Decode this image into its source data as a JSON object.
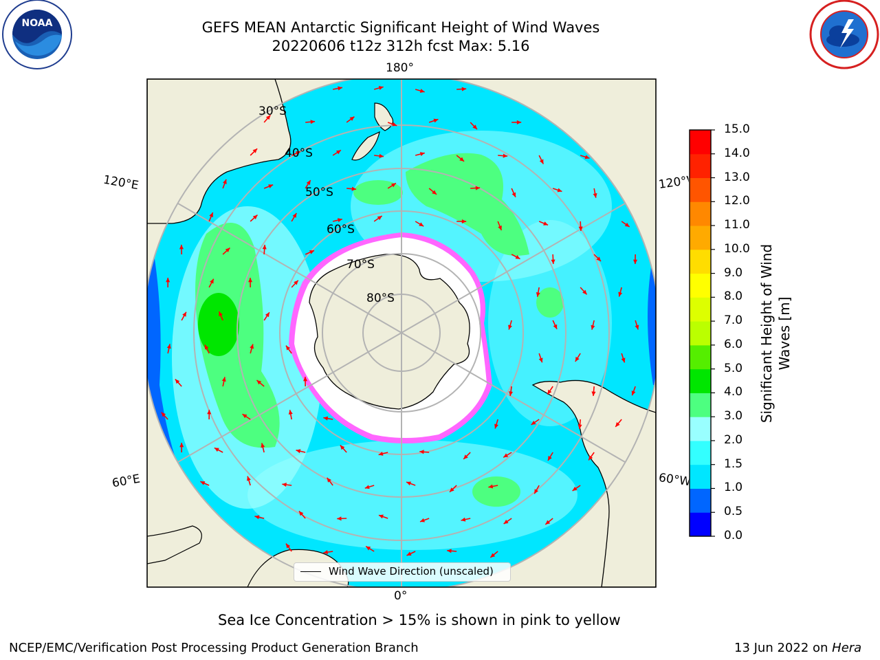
{
  "title": {
    "line1": "GEFS MEAN Antarctic Significant Height of Wind Waves",
    "line2": "20220606 t12z 312h fcst   Max: 5.16"
  },
  "map": {
    "projection": "south-polar-stereographic",
    "longitude_labels": {
      "top": "180°",
      "bottom": "0°",
      "upper_left": "120°E",
      "upper_right": "120°W",
      "lower_left": "60°E",
      "lower_right": "60°W"
    },
    "latitude_labels": [
      "30°S",
      "40°S",
      "50°S",
      "60°S",
      "70°S",
      "80°S"
    ],
    "colors": {
      "land": "#efeedb",
      "sea_ice": "#ffffff",
      "ice_edge": "#ff33ff",
      "arrows": "#ff0000",
      "grid": "#b3b3b3"
    }
  },
  "legend": {
    "label": "Wind Wave Direction (unscaled)"
  },
  "colorbar": {
    "title_line1": "Significant Height of Wind",
    "title_line2": "Waves [m]",
    "ticks": [
      "0.0",
      "0.5",
      "1.0",
      "1.5",
      "2.0",
      "3.0",
      "4.0",
      "5.0",
      "6.0",
      "7.0",
      "8.0",
      "9.0",
      "10.0",
      "11.0",
      "12.0",
      "13.0",
      "14.0",
      "15.0"
    ],
    "colors": [
      "#0000ff",
      "#0066ff",
      "#00e6ff",
      "#33ffff",
      "#99ffff",
      "#4dff80",
      "#00e600",
      "#55ee00",
      "#bbff00",
      "#ddff00",
      "#ffff00",
      "#ffdd00",
      "#ffaa00",
      "#ff8800",
      "#ff5500",
      "#ff2200",
      "#ff0000"
    ]
  },
  "caption": "Sea Ice Concentration > 15% is shown in pink to yellow",
  "footer": {
    "left": "NCEP/EMC/Verification Post Processing Product Generation Branch",
    "right_date": "13 Jun 2022 on ",
    "right_host": "Hera"
  },
  "logos": {
    "left": "NOAA",
    "right": "NATIONAL WEATHER SERVICE"
  }
}
